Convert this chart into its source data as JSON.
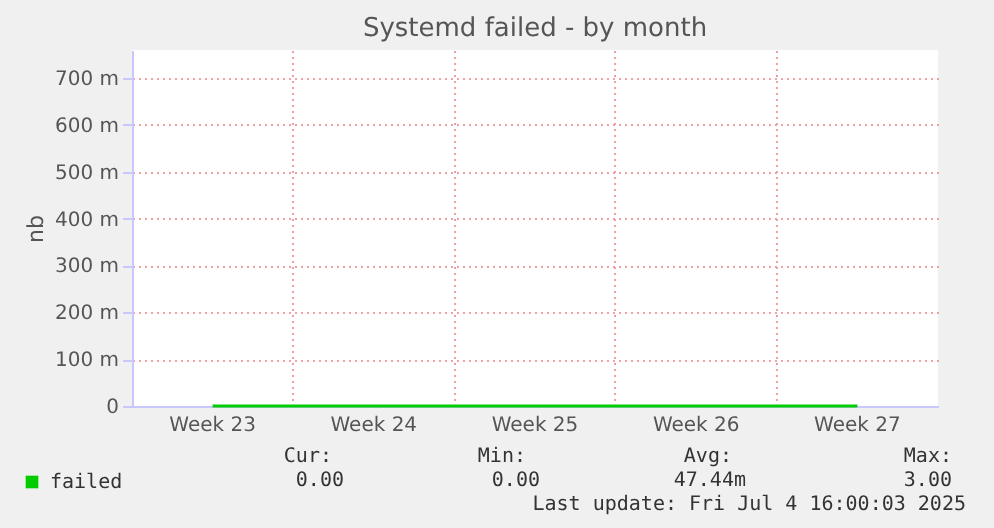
{
  "chart_data": {
    "type": "line",
    "title": "Systemd failed - by month",
    "ylabel": "nb",
    "categories": [
      "Week 23",
      "Week 24",
      "Week 25",
      "Week 26",
      "Week 27"
    ],
    "ylim": [
      0,
      760
    ],
    "yticks": [
      0,
      {
        "value": 100,
        "label": "100 m"
      },
      {
        "value": 200,
        "label": "200 m"
      },
      {
        "value": 300,
        "label": "300 m"
      },
      {
        "value": 400,
        "label": "400 m"
      },
      {
        "value": 500,
        "label": "500 m"
      },
      {
        "value": 600,
        "label": "600 m"
      },
      {
        "value": 700,
        "label": "700 m"
      }
    ],
    "series": [
      {
        "name": "failed",
        "color": "#00cc00",
        "values": [
          0,
          0,
          0,
          0,
          0
        ]
      }
    ],
    "grid": true,
    "legend": "bottom left",
    "annotations": [
      "Cur:",
      "Min:",
      "Avg:",
      "Max:",
      "0.00",
      "0.00",
      "47.44m",
      "3.00",
      "Last update: Fri Jul  4 16:00:03 2025"
    ]
  }
}
